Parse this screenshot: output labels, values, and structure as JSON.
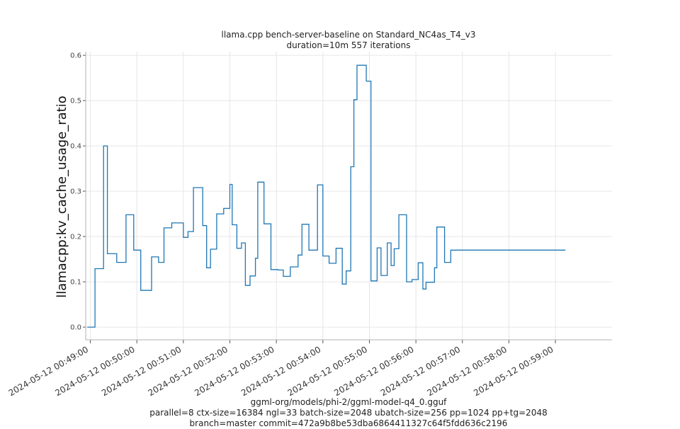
{
  "chart_data": {
    "type": "line",
    "title": "llama.cpp bench-server-baseline on Standard_NC4as_T4_v3",
    "subtitle": "duration=10m 557 iterations",
    "xlabel": "",
    "ylabel": "llamacpp:kv_cache_usage_ratio",
    "footer": [
      "ggml-org/models/phi-2/ggml-model-q4_0.gguf",
      "parallel=8 ctx-size=16384 ngl=33 batch-size=2048 ubatch-size=256 pp=1024 pp+tg=2048",
      "branch=master commit=472a9b8be53dba6864411327c64f5fdd636c2196"
    ],
    "ylim": [
      -0.028,
      0.608
    ],
    "xlim": [
      "2024-05-12 00:48:54",
      "2024-05-12 00:60:13"
    ],
    "yticks": [
      0.0,
      0.1,
      0.2,
      0.3,
      0.4,
      0.5,
      0.6
    ],
    "ytick_labels": [
      "0.0",
      "0.1",
      "0.2",
      "0.3",
      "0.4",
      "0.5",
      "0.6"
    ],
    "xticks": [
      "2024-05-12 00:49:00",
      "2024-05-12 00:50:00",
      "2024-05-12 00:51:00",
      "2024-05-12 00:52:00",
      "2024-05-12 00:53:00",
      "2024-05-12 00:54:00",
      "2024-05-12 00:55:00",
      "2024-05-12 00:56:00",
      "2024-05-12 00:57:00",
      "2024-05-12 00:58:00",
      "2024-05-12 00:59:00"
    ],
    "xtick_labels": [
      "2024-05-12 00:49:00",
      "2024-05-12 00:50:00",
      "2024-05-12 00:51:00",
      "2024-05-12 00:52:00",
      "2024-05-12 00:53:00",
      "2024-05-12 00:54:00",
      "2024-05-12 00:55:00",
      "2024-05-12 00:56:00",
      "2024-05-12 00:57:00",
      "2024-05-12 00:58:00",
      "2024-05-12 00:59:00"
    ],
    "grid": true,
    "line_style": "step",
    "colors": {
      "line": "#1f77b4",
      "grid": "#e6e6e6",
      "axis": "#b0b0b0"
    },
    "series": [
      {
        "x": [
          "2024-05-12 00:48:56",
          "2024-05-12 00:49:04",
          "2024-05-12 00:49:06",
          "2024-05-12 00:49:12",
          "2024-05-12 00:49:17",
          "2024-05-12 00:49:22",
          "2024-05-12 00:49:29",
          "2024-05-12 00:49:34",
          "2024-05-12 00:49:42",
          "2024-05-12 00:49:46",
          "2024-05-12 00:49:56",
          "2024-05-12 00:50:05",
          "2024-05-12 00:50:11",
          "2024-05-12 00:50:19",
          "2024-05-12 00:50:28",
          "2024-05-12 00:50:35",
          "2024-05-12 00:50:41",
          "2024-05-12 00:50:45",
          "2024-05-12 00:51:00",
          "2024-05-12 00:51:06",
          "2024-05-12 00:51:10",
          "2024-05-12 00:51:13",
          "2024-05-12 00:51:25",
          "2024-05-12 00:51:30",
          "2024-05-12 00:51:35",
          "2024-05-12 00:51:43",
          "2024-05-12 00:51:52",
          "2024-05-12 00:52:00",
          "2024-05-12 00:52:03",
          "2024-05-12 00:52:09",
          "2024-05-12 00:52:15",
          "2024-05-12 00:52:20",
          "2024-05-12 00:52:26",
          "2024-05-12 00:52:33",
          "2024-05-12 00:52:36",
          "2024-05-12 00:52:44",
          "2024-05-12 00:52:53",
          "2024-05-12 00:53:02",
          "2024-05-12 00:53:09",
          "2024-05-12 00:53:18",
          "2024-05-12 00:53:28",
          "2024-05-12 00:53:33",
          "2024-05-12 00:53:42",
          "2024-05-12 00:53:53",
          "2024-05-12 00:54:00",
          "2024-05-12 00:54:08",
          "2024-05-12 00:54:17",
          "2024-05-12 00:54:25",
          "2024-05-12 00:54:30",
          "2024-05-12 00:54:36",
          "2024-05-12 00:54:40",
          "2024-05-12 00:54:44",
          "2024-05-12 00:54:56",
          "2024-05-12 00:55:02",
          "2024-05-12 00:55:10",
          "2024-05-12 00:55:15",
          "2024-05-12 00:55:23",
          "2024-05-12 00:55:28",
          "2024-05-12 00:55:32",
          "2024-05-12 00:55:38",
          "2024-05-12 00:55:48",
          "2024-05-12 00:55:55",
          "2024-05-12 00:56:03",
          "2024-05-12 00:56:09",
          "2024-05-12 00:56:13",
          "2024-05-12 00:56:24",
          "2024-05-12 00:56:27",
          "2024-05-12 00:56:37",
          "2024-05-12 00:56:45",
          "2024-05-12 00:56:51",
          "2024-05-12 00:57:01",
          "2024-05-12 00:57:03",
          "2024-05-12 00:57:10",
          "2024-05-12 00:57:17",
          "2024-05-12 00:57:27",
          "2024-05-12 00:57:32",
          "2024-05-12 00:57:39",
          "2024-05-12 00:57:50",
          "2024-05-12 00:57:53",
          "2024-05-12 00:58:00",
          "2024-05-12 00:58:10",
          "2024-05-12 00:58:15",
          "2024-05-12 00:58:20",
          "2024-05-12 00:58:26",
          "2024-05-12 00:58:35",
          "2024-05-12 00:58:40",
          "2024-05-12 00:58:46",
          "2024-05-12 00:58:59",
          "2024-05-12 00:59:02",
          "2024-05-12 00:59:07",
          "2024-05-12 00:59:13"
        ],
        "y": [
          0.0,
          0.0,
          0.129,
          0.129,
          0.4,
          0.162,
          0.162,
          0.143,
          0.143,
          0.248,
          0.17,
          0.081,
          0.081,
          0.155,
          0.143,
          0.219,
          0.219,
          0.23,
          0.198,
          0.211,
          0.211,
          0.308,
          0.224,
          0.131,
          0.172,
          0.25,
          0.262,
          0.315,
          0.226,
          0.174,
          0.186,
          0.092,
          0.113,
          0.152,
          0.32,
          0.228,
          0.127,
          0.126,
          0.112,
          0.133,
          0.159,
          0.227,
          0.17,
          0.314,
          0.157,
          0.141,
          0.174,
          0.095,
          0.124,
          0.354,
          0.502,
          0.578,
          0.543,
          0.102,
          0.175,
          0.114,
          0.186,
          0.136,
          0.173,
          0.248,
          0.1,
          0.105,
          0.142,
          0.084,
          0.099,
          0.131,
          0.221,
          0.143,
          0.17,
          0.17,
          0.17,
          0.17,
          0.17,
          0.17,
          0.17,
          0.17,
          0.17,
          0.17,
          0.17,
          0.17,
          0.17,
          0.17,
          0.17,
          0.17,
          0.17,
          0.17,
          0.17,
          0.17,
          0.17,
          0.17,
          0.17
        ]
      }
    ]
  }
}
